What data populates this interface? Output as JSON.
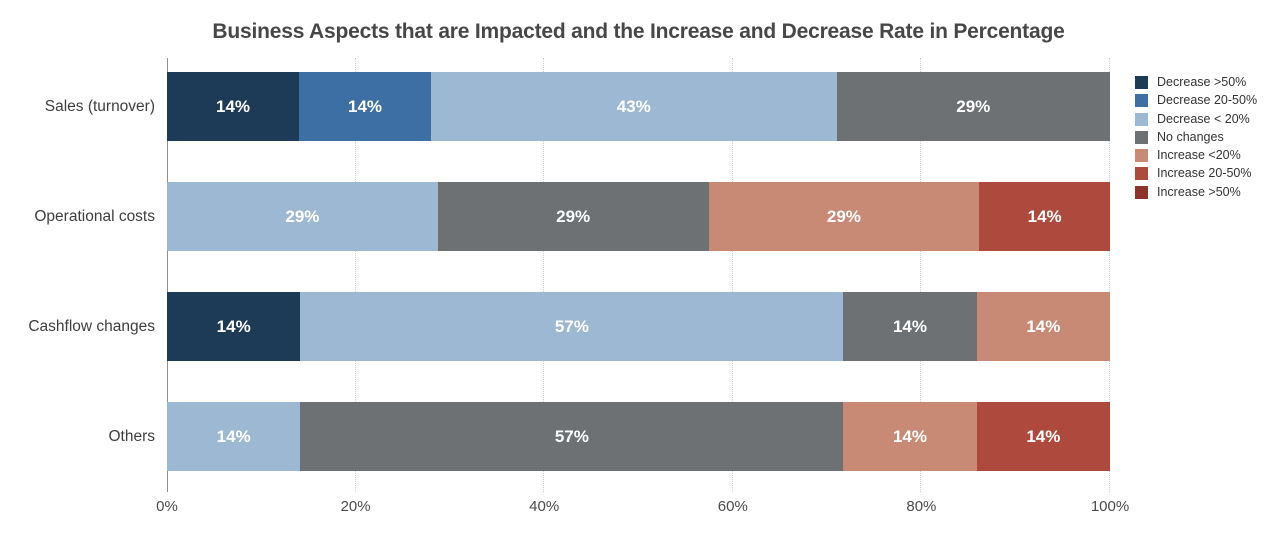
{
  "title": "Business Aspects that are Impacted and the Increase and Decrease Rate in Percentage",
  "chart_data": {
    "type": "bar",
    "orientation": "horizontal",
    "stacked": true,
    "normalized_to_100": true,
    "title": "Business Aspects that are Impacted and the Increase and Decrease Rate in Percentage",
    "categories": [
      "Sales (turnover)",
      "Operational costs",
      "Cashflow changes",
      "Others"
    ],
    "series": [
      {
        "name": "Decrease >50%",
        "color": "#1d3a56",
        "values": [
          14,
          0,
          14,
          0
        ]
      },
      {
        "name": "Decrease 20-50%",
        "color": "#3d6ea4",
        "values": [
          14,
          0,
          0,
          0
        ]
      },
      {
        "name": "Decrease < 20%",
        "color": "#9db8d3",
        "values": [
          43,
          29,
          57,
          14
        ]
      },
      {
        "name": "No changes",
        "color": "#6d7174",
        "values": [
          29,
          29,
          14,
          57
        ]
      },
      {
        "name": "Increase <20%",
        "color": "#c88a75",
        "values": [
          0,
          29,
          14,
          14
        ]
      },
      {
        "name": "Increase 20-50%",
        "color": "#ad4a3d",
        "values": [
          0,
          14,
          0,
          14
        ]
      },
      {
        "name": "Increase >50%",
        "color": "#8c342c",
        "values": [
          0,
          0,
          0,
          0
        ]
      }
    ],
    "bar_label_suffix": "%",
    "x_ticks": [
      {
        "value": 0,
        "label": "0%"
      },
      {
        "value": 20,
        "label": "20%"
      },
      {
        "value": 40,
        "label": "40%"
      },
      {
        "value": 60,
        "label": "60%"
      },
      {
        "value": 80,
        "label": "80%"
      },
      {
        "value": 100,
        "label": "100%"
      }
    ],
    "xlim": [
      0,
      100
    ],
    "grid": "vertical-dotted",
    "legend_position": "right"
  },
  "colors": {
    "background": "#ffffff",
    "title_text": "#474747",
    "category_text": "#3e3e3e",
    "tick_text": "#4b4b4b",
    "legend_text": "#333333",
    "bar_label_text": "#ffffff",
    "axis_line": "#8f8f8f",
    "gridline": "#cfcfcf"
  }
}
